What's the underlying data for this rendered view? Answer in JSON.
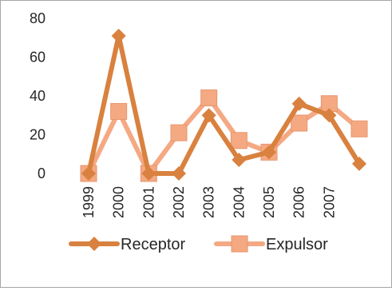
{
  "chart_data": {
    "type": "line",
    "categories": [
      "1999",
      "2000",
      "2001",
      "2002",
      "2003",
      "2004",
      "2005",
      "2006",
      "2007",
      ""
    ],
    "y_ticks": [
      "0",
      "20",
      "40",
      "60",
      "80"
    ],
    "ylim": [
      0,
      80
    ],
    "grid": false,
    "legend_position": "bottom",
    "series": [
      {
        "name": "Receptor",
        "marker": "diamond",
        "color": "#d9813f",
        "values": [
          0,
          71,
          0,
          0,
          30,
          7,
          11,
          36,
          30,
          5
        ]
      },
      {
        "name": "Expulsor",
        "marker": "square",
        "color": "#f4a983",
        "values": [
          0,
          32,
          0,
          21,
          39,
          17,
          11,
          26,
          36,
          23
        ]
      }
    ]
  }
}
